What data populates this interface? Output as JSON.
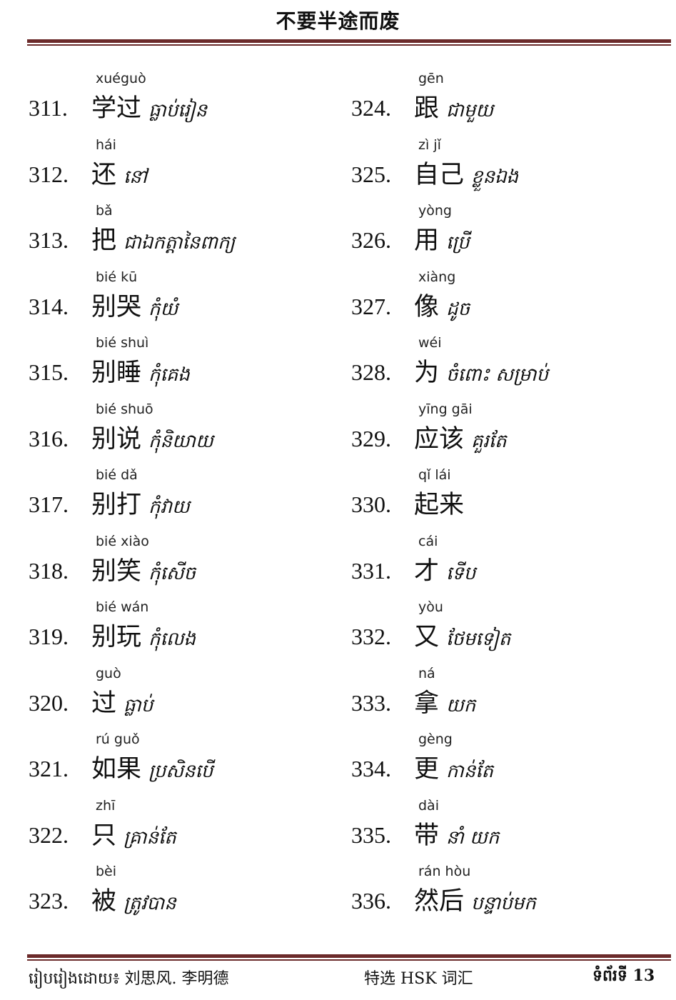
{
  "header": {
    "title": "不要半途而废"
  },
  "left_column": [
    {
      "number": "311.",
      "pinyin": "xuéguò",
      "chinese": "学过",
      "khmer": "ធ្លាប់រៀន"
    },
    {
      "number": "312.",
      "pinyin": "hái",
      "chinese": "还",
      "khmer": "នៅ"
    },
    {
      "number": "313.",
      "pinyin": "bǎ",
      "chinese": "把",
      "khmer": "ជាឯកត្តានៃពាក្យ"
    },
    {
      "number": "314.",
      "pinyin": "bié kū",
      "chinese": "别哭",
      "khmer": "កុំយំ"
    },
    {
      "number": "315.",
      "pinyin": "bié shuì",
      "chinese": "别睡",
      "khmer": "កុំគេង"
    },
    {
      "number": "316.",
      "pinyin": "bié shuō",
      "chinese": "别说",
      "khmer": "កុំនិយាយ"
    },
    {
      "number": "317.",
      "pinyin": "bié dǎ",
      "chinese": "别打",
      "khmer": "កុំវាយ"
    },
    {
      "number": "318.",
      "pinyin": "bié xiào",
      "chinese": "别笑",
      "khmer": "កុំសើច"
    },
    {
      "number": "319.",
      "pinyin": "bié wán",
      "chinese": "别玩",
      "khmer": "កុំលេង"
    },
    {
      "number": "320.",
      "pinyin": "guò",
      "chinese": "过",
      "khmer": "ធ្លាប់"
    },
    {
      "number": "321.",
      "pinyin": "rú  guǒ",
      "chinese": "如果",
      "khmer": "ប្រសិនបើ"
    },
    {
      "number": "322.",
      "pinyin": "zhī",
      "chinese": "只",
      "khmer": "គ្រាន់តែ"
    },
    {
      "number": "323.",
      "pinyin": "bèi",
      "chinese": "被",
      "khmer": "ត្រូវបាន"
    }
  ],
  "right_column": [
    {
      "number": "324.",
      "pinyin": "gēn",
      "chinese": "跟",
      "khmer": "ជាមួយ"
    },
    {
      "number": "325.",
      "pinyin": "zì   jǐ",
      "chinese": "自己",
      "khmer": "ខ្លួនឯង"
    },
    {
      "number": "326.",
      "pinyin": "yòng",
      "chinese": "用",
      "khmer": "ប្រើ"
    },
    {
      "number": "327.",
      "pinyin": "xiàng",
      "chinese": "像",
      "khmer": "ដូច"
    },
    {
      "number": "328.",
      "pinyin": "wéi",
      "chinese": "为",
      "khmer": "ចំពោះ សម្រាប់"
    },
    {
      "number": "329.",
      "pinyin": "yīng gāi",
      "chinese": "应该",
      "khmer": "គួរតែ"
    },
    {
      "number": "330.",
      "pinyin": "qǐ   lái",
      "chinese": "起来",
      "khmer": ""
    },
    {
      "number": "331.",
      "pinyin": "cái",
      "chinese": "才",
      "khmer": "ទើប"
    },
    {
      "number": "332.",
      "pinyin": "yòu",
      "chinese": "又",
      "khmer": "ថែមទៀត"
    },
    {
      "number": "333.",
      "pinyin": "ná",
      "chinese": "拿",
      "khmer": "យក"
    },
    {
      "number": "334.",
      "pinyin": "gèng",
      "chinese": "更",
      "khmer": "កាន់តែ"
    },
    {
      "number": "335.",
      "pinyin": "dài",
      "chinese": "带",
      "khmer": "នាំ យក"
    },
    {
      "number": "336.",
      "pinyin": "rán hòu",
      "chinese": "然后",
      "khmer": "បន្ទាប់មក"
    }
  ],
  "footer": {
    "author": "រៀបរៀងដោយ៖ 刘思风. 李明德",
    "book": "特选 HSK 词汇",
    "page": "ទំព័រទី 13"
  },
  "colors": {
    "rule": "#6b2a2a"
  }
}
